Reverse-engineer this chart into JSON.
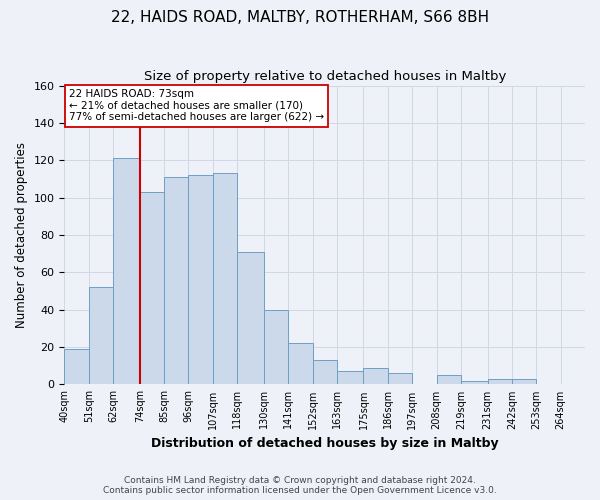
{
  "title": "22, HAIDS ROAD, MALTBY, ROTHERHAM, S66 8BH",
  "subtitle": "Size of property relative to detached houses in Maltby",
  "xlabel": "Distribution of detached houses by size in Maltby",
  "ylabel": "Number of detached properties",
  "bin_labels": [
    "40sqm",
    "51sqm",
    "62sqm",
    "74sqm",
    "85sqm",
    "96sqm",
    "107sqm",
    "118sqm",
    "130sqm",
    "141sqm",
    "152sqm",
    "163sqm",
    "175sqm",
    "186sqm",
    "197sqm",
    "208sqm",
    "219sqm",
    "231sqm",
    "242sqm",
    "253sqm",
    "264sqm"
  ],
  "bar_heights": [
    19,
    52,
    121,
    103,
    111,
    112,
    113,
    71,
    40,
    22,
    13,
    7,
    9,
    6,
    0,
    5,
    2,
    3,
    3,
    0
  ],
  "bar_color": "#ccd9ea",
  "bar_edge_color": "#6e9fc5",
  "vertical_line_color": "#cc0000",
  "annotation_box_color": "#ffffff",
  "annotation_box_edge": "#cc0000",
  "marker_label": "22 HAIDS ROAD: 73sqm",
  "annotation_line1": "← 21% of detached houses are smaller (170)",
  "annotation_line2": "77% of semi-detached houses are larger (622) →",
  "grid_color": "#d0d8e8",
  "background_color": "#eef2f8",
  "footer_line1": "Contains HM Land Registry data © Crown copyright and database right 2024.",
  "footer_line2": "Contains public sector information licensed under the Open Government Licence v3.0.",
  "ylim": [
    0,
    160
  ],
  "title_fontsize": 11,
  "subtitle_fontsize": 9.5
}
